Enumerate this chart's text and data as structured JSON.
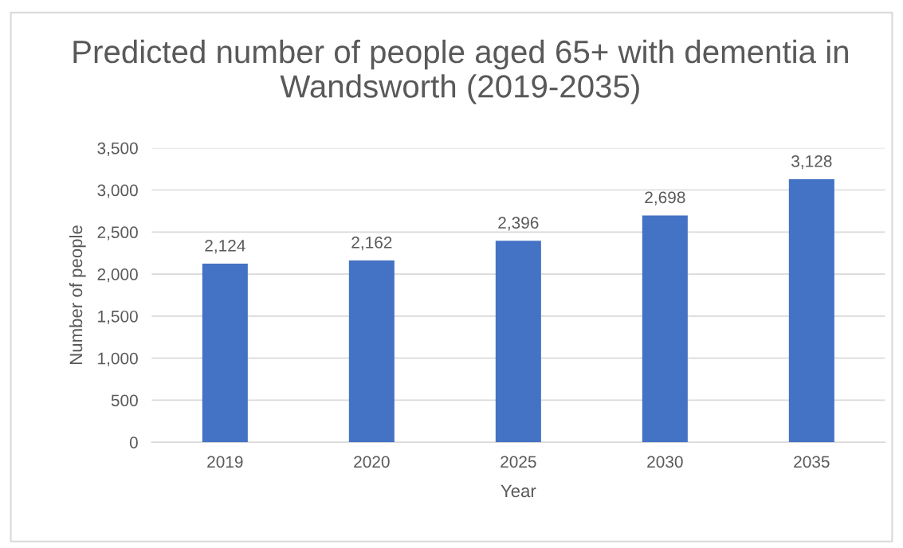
{
  "chart_data": {
    "type": "bar",
    "title": "Predicted number of people aged 65+ with dementia in Wandsworth (2019-2035)",
    "xlabel": "Year",
    "ylabel": "Number of people",
    "categories": [
      "2019",
      "2020",
      "2025",
      "2030",
      "2035"
    ],
    "values": [
      2124,
      2162,
      2396,
      2698,
      3128
    ],
    "color": "#4472c4",
    "ylim": [
      0,
      3500
    ],
    "yticks": [
      0,
      500,
      {
        "value": 1000,
        "label": "1,000"
      },
      {
        "value": 1500,
        "label": "1,500"
      },
      {
        "value": 2000,
        "label": "2,000"
      },
      {
        "value": 2500,
        "label": "2,500"
      },
      {
        "value": 3000,
        "label": "3,000"
      },
      {
        "value": 3500,
        "label": "3,500"
      }
    ],
    "value_labels": [
      "2,124",
      "2,162",
      "2,396",
      "2,698",
      "3,128"
    ],
    "grid": "y",
    "legend": false
  }
}
